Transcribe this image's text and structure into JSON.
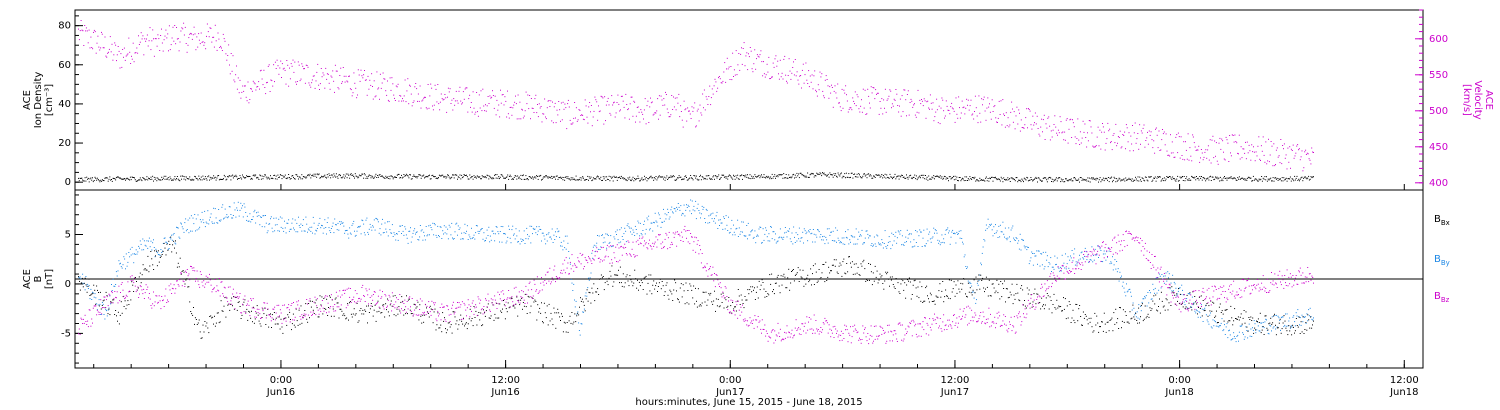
{
  "colors": {
    "axis": "#000000",
    "magenta": "#cc00cc",
    "blue": "#1e88e5",
    "black": "#000000"
  },
  "chart_data": [
    {
      "type": "scatter",
      "panel": "plasma",
      "ylabel_left": [
        "ACE",
        "Ion Density",
        "[cm⁻³]"
      ],
      "ylabel_right": [
        "ACE",
        "Velocity",
        "[km/s]"
      ],
      "left_ticks": [
        "0",
        "20",
        "40",
        "60",
        "80"
      ],
      "right_ticks": [
        "400",
        "450",
        "500",
        "550",
        "600"
      ],
      "ylim_left": [
        -4,
        88
      ],
      "ylim_right": [
        390,
        640
      ],
      "series": [
        {
          "color": "#cc00cc",
          "axis": "right",
          "x": [
            0.0,
            2.0,
            3.0,
            5.0,
            6.0,
            7.0,
            8.5,
            10.5,
            12.0,
            15.0,
            18.0,
            20.0,
            22.0,
            24.0,
            26.0,
            28.0,
            30.0,
            32.0,
            34.0,
            36.0,
            38.0,
            40.0,
            42.0,
            44.0,
            45.0,
            47.0,
            49.0,
            50.0,
            52.0,
            54.0,
            56.0,
            58.0,
            60.0,
            62.0,
            64.0,
            66.0,
            68.0,
            70.0,
            72.0,
            74.0,
            76.0,
            78.0,
            80.0,
            82.0,
            84.0,
            86.0,
            88.0,
            90.0,
            91.0
          ],
          "y": [
            608,
            590,
            575,
            600,
            593,
            605,
            600,
            605,
            525,
            555,
            548,
            540,
            535,
            530,
            520,
            515,
            512,
            510,
            505,
            495,
            500,
            505,
            500,
            512,
            485,
            540,
            580,
            570,
            560,
            545,
            520,
            515,
            512,
            510,
            500,
            505,
            500,
            485,
            475,
            470,
            465,
            465,
            458,
            450,
            445,
            450,
            442,
            438,
            432
          ]
        },
        {
          "color": "#000000",
          "axis": "left",
          "x": [
            0,
            5,
            10,
            15,
            20,
            25,
            30,
            35,
            40,
            45,
            50,
            55,
            60,
            65,
            70,
            75,
            80,
            85,
            91
          ],
          "y": [
            1.5,
            2,
            2.5,
            3,
            3.5,
            3,
            3,
            2.5,
            2,
            2.5,
            3,
            4,
            3,
            2,
            1.5,
            1.5,
            2,
            2,
            2
          ]
        }
      ]
    },
    {
      "type": "scatter",
      "panel": "magnetic field",
      "ylabel": [
        "ACE",
        "B",
        "[nT]"
      ],
      "ticks": [
        "-5",
        "0",
        "5"
      ],
      "ylim": [
        -8.5,
        9.5
      ],
      "legend": [
        "Bx",
        "By",
        "Bz"
      ],
      "series": [
        {
          "name": "By",
          "color": "#1e88e5",
          "x": [
            0,
            2,
            3,
            4,
            5,
            6,
            8,
            9,
            10,
            12,
            14,
            18,
            20,
            22,
            24,
            27,
            30,
            35,
            36,
            37,
            38,
            40,
            42,
            45,
            46,
            50,
            55,
            60,
            65,
            66,
            67,
            69,
            70,
            72,
            74,
            76,
            78,
            80,
            82,
            84,
            85,
            88,
            91
          ],
          "y": [
            1,
            -3,
            2,
            3,
            4,
            3.5,
            6,
            6.5,
            7,
            7.5,
            6,
            6,
            5.5,
            6,
            5,
            5.5,
            5,
            5,
            4,
            -5,
            4,
            5,
            6,
            8,
            7,
            5,
            5,
            4.5,
            5,
            -2,
            6,
            5,
            3,
            2,
            3,
            3,
            -3,
            1,
            -2,
            -4,
            -5,
            -4,
            -3
          ]
        },
        {
          "name": "Bx",
          "color": "#000000",
          "x": [
            0,
            3,
            5,
            7,
            9,
            11,
            13,
            15,
            18,
            21,
            24,
            27,
            30,
            33,
            36,
            39,
            42,
            45,
            48,
            51,
            54,
            57,
            60,
            63,
            66,
            69,
            72,
            75,
            78,
            81,
            84,
            87,
            91
          ],
          "y": [
            0.5,
            -3,
            2,
            4,
            -5,
            -2,
            -3,
            -4,
            -2,
            -3,
            -2,
            -4,
            -3,
            -2,
            -4,
            1,
            0,
            -1,
            -2,
            0,
            1,
            2,
            0,
            -1,
            0,
            -1,
            -2,
            -4,
            -3,
            -1,
            -3,
            -4,
            -4
          ]
        },
        {
          "name": "Bz",
          "color": "#cc00cc",
          "x": [
            0,
            2,
            4,
            6,
            8,
            10,
            12,
            15,
            18,
            21,
            24,
            27,
            30,
            33,
            36,
            39,
            42,
            45,
            48,
            51,
            54,
            57,
            60,
            63,
            66,
            69,
            72,
            75,
            78,
            81,
            84,
            87,
            91
          ],
          "y": [
            -4.5,
            -2,
            0,
            -2,
            1,
            0,
            -2,
            -3,
            -2,
            -1,
            -2,
            -3,
            -2,
            -1,
            2,
            3,
            4,
            5,
            -2,
            -5,
            -4,
            -5,
            -5,
            -4,
            -3,
            -4,
            1,
            3,
            5,
            -2,
            -1,
            0,
            1
          ]
        }
      ],
      "xlabel": "hours:minutes, June 15, 2015 - June 18, 2015",
      "x_tick_time": [
        "0:00",
        "12:00",
        "0:00",
        "12:00",
        "0:00",
        "12:00"
      ],
      "x_tick_date": [
        "Jun16",
        "Jun16",
        "Jun17",
        "Jun17",
        "Jun18",
        "Jun18"
      ],
      "x_tick_hours": [
        24,
        36,
        48,
        60,
        72,
        84
      ],
      "xlim_hours": [
        13,
        85
      ]
    }
  ]
}
